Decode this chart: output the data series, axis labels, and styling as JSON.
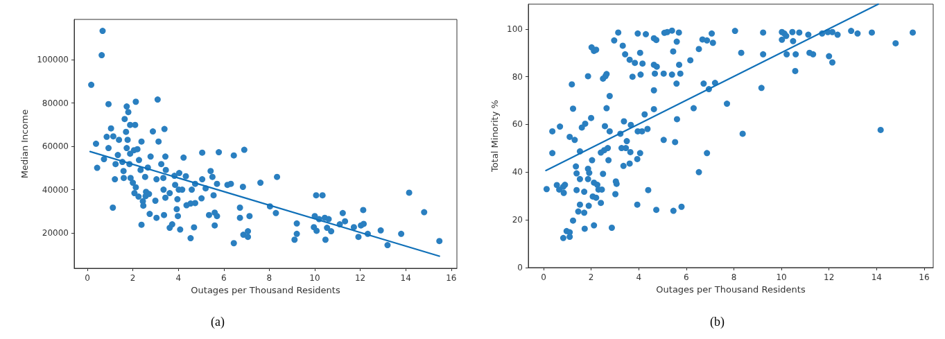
{
  "chart_data": [
    {
      "type": "scatter",
      "xlabel": "Outages per Thousand Residents",
      "ylabel": "Median Income",
      "xlim": [
        -0.58,
        16.25
      ],
      "ylim": [
        3700,
        118600
      ],
      "xticks": [
        0,
        2,
        4,
        6,
        8,
        10,
        12,
        14,
        16
      ],
      "yticks": [
        20000,
        40000,
        60000,
        80000,
        100000
      ],
      "grid": false,
      "marker": "circle",
      "annotations": [
        "(a)"
      ],
      "series": [
        {
          "type": "scatter",
          "color": "#2a7fc0",
          "x": [
            0.67,
            0.63,
            0.17,
            0.93,
            0.38,
            0.43,
            0.73,
            1.04,
            0.85,
            0.93,
            1.14,
            1.39,
            1.24,
            1.34,
            1.21,
            1.12,
            1.54,
            1.59,
            1.6,
            1.64,
            1.73,
            1.8,
            1.7,
            1.77,
            1.73,
            1.88,
            2.1,
            2.13,
            1.88,
            2.05,
            2.2,
            2.38,
            2.27,
            1.85,
            1.9,
            2.0,
            2.13,
            2.07,
            2.25,
            2.44,
            2.46,
            2.58,
            2.56,
            2.71,
            2.38,
            2.34,
            2.54,
            2.66,
            2.78,
            2.88,
            3.09,
            3.13,
            3.39,
            3.43,
            3.25,
            3.45,
            3.04,
            3.34,
            2.99,
            2.74,
            3.04,
            3.37,
            3.35,
            3.43,
            3.62,
            3.73,
            3.62,
            3.83,
            4.04,
            3.86,
            4.02,
            4.17,
            3.96,
            3.93,
            3.98,
            4.08,
            4.23,
            4.33,
            4.36,
            4.54,
            4.74,
            4.69,
            4.54,
            4.59,
            4.74,
            5.02,
            5.05,
            5.05,
            5.2,
            5.42,
            5.5,
            5.55,
            5.35,
            5.6,
            5.7,
            5.6,
            5.78,
            5.7,
            6.16,
            6.31,
            6.44,
            6.9,
            6.84,
            6.71,
            6.71,
            7.13,
            6.44,
            6.86,
            7.06,
            7.06,
            7.61,
            8.34,
            8.03,
            8.29,
            9.21,
            9.21,
            9.11,
            10.06,
            10.34,
            10.0,
            10.19,
            10.44,
            10.61,
            9.96,
            10.08,
            10.54,
            10.72,
            10.47,
            11.1,
            11.23,
            11.33,
            11.72,
            11.92,
            12.03,
            12.15,
            12.13,
            12.33,
            12.9,
            13.2,
            13.8,
            14.15,
            14.81,
            15.48
          ],
          "values": [
            113300,
            102100,
            88400,
            79500,
            61200,
            50100,
            54100,
            68300,
            64400,
            59200,
            64600,
            63000,
            51800,
            56000,
            44800,
            31700,
            52800,
            48600,
            45400,
            72600,
            78400,
            75800,
            66700,
            63000,
            59200,
            69900,
            69900,
            80600,
            56600,
            58200,
            58700,
            62200,
            53700,
            51800,
            45400,
            43200,
            41100,
            38400,
            36800,
            34700,
            32600,
            39000,
            37000,
            38000,
            23800,
            49100,
            45900,
            50200,
            55300,
            66900,
            81600,
            62200,
            68000,
            55300,
            51800,
            49100,
            44800,
            45400,
            34900,
            28800,
            27000,
            28300,
            40000,
            36300,
            38400,
            24000,
            22400,
            46400,
            47700,
            42200,
            40000,
            40000,
            35600,
            31000,
            27800,
            21600,
            54800,
            46200,
            32800,
            33600,
            33800,
            22600,
            17600,
            40000,
            42700,
            36000,
            44800,
            57100,
            40600,
            48600,
            45900,
            37400,
            28300,
            29400,
            27800,
            23500,
            57300,
            42700,
            42200,
            42700,
            55800,
            58400,
            41300,
            31700,
            27000,
            27800,
            15300,
            19200,
            20800,
            18200,
            43200,
            45900,
            32300,
            29200,
            24400,
            19600,
            16900,
            37400,
            37400,
            27800,
            26400,
            27000,
            26400,
            22700,
            21000,
            22400,
            20800,
            16900,
            24000,
            29200,
            25400,
            22700,
            18200,
            23500,
            24200,
            30600,
            19600,
            21200,
            14400,
            19600,
            38600,
            29600,
            16300
          ]
        },
        {
          "type": "line",
          "color": "#1070b8",
          "marker": "none",
          "line_style": "solid",
          "x": [
            0.12,
            15.48
          ],
          "values": [
            57600,
            9300
          ]
        }
      ]
    },
    {
      "type": "scatter",
      "xlabel": "Outages per Thousand Residents",
      "ylabel": "Total Minority %",
      "xlim": [
        -0.64,
        16.38
      ],
      "ylim": [
        0,
        110.4
      ],
      "xticks": [
        0,
        2,
        4,
        6,
        8,
        10,
        12,
        14,
        16
      ],
      "yticks": [
        0,
        20,
        40,
        60,
        80,
        100
      ],
      "grid": false,
      "marker": "circle",
      "annotations": [
        "(b)"
      ],
      "series": [
        {
          "type": "scatter",
          "color": "#2a7fc0",
          "x": [
            0.13,
            0.37,
            0.37,
            0.69,
            0.56,
            0.66,
            0.83,
            0.9,
            0.85,
            0.83,
            0.97,
            1.1,
            1.1,
            1.24,
            1.19,
            1.24,
            1.1,
            1.31,
            1.36,
            1.39,
            1.39,
            1.53,
            1.53,
            1.61,
            1.75,
            1.87,
            2.0,
            2.04,
            1.87,
            1.92,
            1.87,
            1.71,
            1.53,
            1.46,
            1.71,
            1.9,
            1.73,
            2.12,
            2.02,
            2.12,
            2.21,
            2.07,
            2.21,
            2.12,
            2.26,
            2.31,
            2.41,
            2.45,
            2.5,
            2.41,
            2.55,
            2.7,
            2.58,
            2.78,
            2.73,
            2.65,
            2.78,
            2.5,
            2.65,
            2.6,
            2.87,
            3.02,
            3.04,
            3.07,
            2.97,
            3.14,
            3.33,
            3.23,
            3.38,
            3.36,
            3.28,
            3.46,
            3.5,
            3.65,
            3.62,
            3.67,
            3.43,
            3.62,
            3.84,
            3.74,
            3.94,
            4.06,
            3.96,
            4.14,
            4.25,
            4.37,
            3.94,
            4.4,
            3.96,
            4.06,
            4.16,
            4.08,
            4.3,
            4.64,
            4.74,
            4.64,
            4.76,
            4.68,
            4.64,
            4.64,
            4.74,
            5.05,
            5.05,
            5.08,
            5.2,
            5.4,
            5.69,
            5.6,
            5.45,
            5.4,
            5.7,
            5.75,
            5.59,
            5.61,
            5.53,
            5.46,
            5.8,
            6.17,
            6.53,
            6.68,
            6.87,
            7.07,
            7.12,
            6.73,
            6.95,
            7.21,
            6.31,
            6.53,
            6.87,
            8.05,
            7.71,
            8.31,
            8.37,
            9.23,
            9.23,
            9.16,
            10.02,
            10.12,
            10.02,
            10.2,
            10.46,
            10.75,
            10.49,
            10.22,
            10.6,
            10.58,
            11.13,
            11.18,
            11.33,
            11.71,
            11.95,
            12.14,
            12.36,
            12.0,
            12.14,
            12.93,
            13.2,
            13.8,
            14.17,
            14.8,
            15.52
          ],
          "values": [
            32.9,
            48.0,
            57.1,
            59.1,
            34.6,
            32.7,
            33.9,
            34.7,
            31.3,
            12.4,
            15.3,
            12.9,
            14.8,
            19.7,
            76.8,
            66.6,
            54.8,
            53.5,
            42.4,
            39.5,
            32.5,
            37.1,
            48.7,
            58.7,
            60.3,
            80.2,
            62.7,
            45.0,
            41.4,
            39.7,
            37.1,
            31.8,
            26.4,
            23.5,
            23.0,
            25.9,
            16.3,
            17.7,
            92.3,
            90.8,
            91.3,
            29.8,
            29.3,
            35.6,
            34.7,
            32.7,
            27.1,
            32.7,
            39.3,
            48.2,
            49.2,
            50.1,
            59.3,
            57.1,
            45.0,
            66.8,
            71.9,
            79.2,
            81.1,
            80.2,
            16.7,
            30.8,
            36.1,
            35.1,
            95.2,
            98.5,
            93.0,
            56.1,
            61.3,
            42.6,
            50.1,
            50.1,
            53.0,
            48.4,
            43.6,
            59.8,
            89.4,
            87.1,
            85.8,
            80.0,
            45.5,
            48.0,
            57.1,
            57.1,
            64.2,
            58.1,
            26.4,
            32.5,
            98.1,
            90.0,
            85.5,
            80.9,
            97.8,
            96.1,
            95.4,
            85.0,
            84.2,
            81.3,
            74.3,
            66.4,
            24.2,
            81.3,
            53.5,
            98.4,
            98.7,
            99.3,
            98.5,
            94.7,
            90.6,
            80.9,
            85.0,
            81.3,
            77.1,
            62.2,
            52.6,
            23.8,
            25.5,
            86.9,
            91.6,
            95.6,
            95.2,
            98.1,
            94.2,
            77.1,
            74.8,
            77.4,
            66.8,
            40.0,
            48.0,
            99.2,
            68.7,
            90.0,
            56.1,
            98.5,
            89.4,
            75.3,
            98.7,
            98.1,
            95.5,
            97.1,
            98.7,
            98.5,
            94.9,
            89.4,
            89.4,
            82.4,
            97.6,
            90.0,
            89.4,
            98.1,
            98.7,
            98.7,
            97.6,
            88.6,
            86.0,
            99.2,
            98.1,
            98.5,
            57.7,
            94.0,
            98.5
          ]
        },
        {
          "type": "line",
          "color": "#1070b8",
          "marker": "none",
          "line_style": "solid",
          "x": [
            0.1,
            14.07
          ],
          "values": [
            40.7,
            110.4
          ]
        }
      ]
    }
  ]
}
